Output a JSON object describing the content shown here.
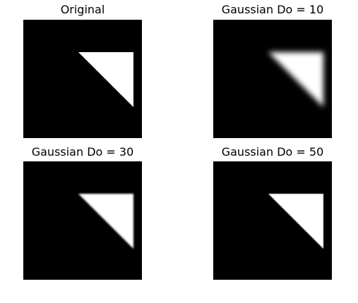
{
  "panels": [
    {
      "title": "Original",
      "blur": 0
    },
    {
      "title": "Gaussian Do = 10",
      "blur": 4
    },
    {
      "title": "Gaussian Do = 30",
      "blur": 1.3
    },
    {
      "title": "Gaussian Do = 50",
      "blur": 0.6
    }
  ],
  "colors": {
    "background": "#000000",
    "shape": "#ffffff",
    "page": "#ffffff"
  }
}
